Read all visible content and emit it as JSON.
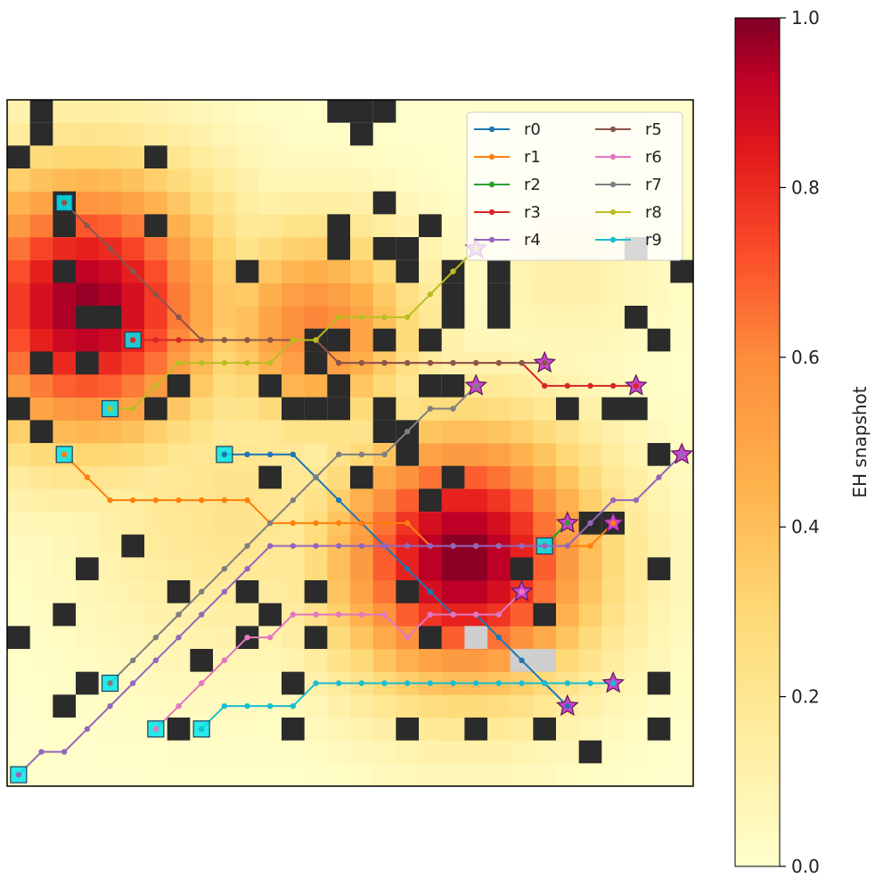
{
  "chart_data": {
    "type": "heatmap",
    "grid_size": [
      30,
      30
    ],
    "title": "",
    "xlabel": "",
    "ylabel": "",
    "heat_blobs": [
      {
        "cx": 3.0,
        "cy": 20.5,
        "peak": 0.98,
        "sigma": 4.3
      },
      {
        "cx": 19.5,
        "cy": 9.5,
        "peak": 1.0,
        "sigma": 4.1
      },
      {
        "cx": 13.0,
        "cy": 19.5,
        "peak": 0.62,
        "sigma": 3.2
      },
      {
        "cx": 9.5,
        "cy": 12.0,
        "peak": 0.22,
        "sigma": 5.0
      },
      {
        "cx": 24.0,
        "cy": 22.0,
        "peak": 0.12,
        "sigma": 3.0
      }
    ],
    "obstacles": [
      [
        1,
        29
      ],
      [
        14,
        29
      ],
      [
        15,
        29
      ],
      [
        16,
        29
      ],
      [
        1,
        28
      ],
      [
        15,
        28
      ],
      [
        0,
        27
      ],
      [
        6,
        27
      ],
      [
        2,
        25
      ],
      [
        16,
        25
      ],
      [
        2,
        24
      ],
      [
        6,
        24
      ],
      [
        14,
        24
      ],
      [
        18,
        24
      ],
      [
        14,
        23
      ],
      [
        16,
        23
      ],
      [
        17,
        23
      ],
      [
        27,
        23
      ],
      [
        2,
        22
      ],
      [
        10,
        22
      ],
      [
        17,
        22
      ],
      [
        19,
        22
      ],
      [
        21,
        22
      ],
      [
        29,
        22
      ],
      [
        19,
        21
      ],
      [
        21,
        21
      ],
      [
        3,
        20
      ],
      [
        4,
        20
      ],
      [
        19,
        20
      ],
      [
        21,
        20
      ],
      [
        27,
        20
      ],
      [
        13,
        19
      ],
      [
        14,
        19
      ],
      [
        16,
        19
      ],
      [
        18,
        19
      ],
      [
        28,
        19
      ],
      [
        1,
        18
      ],
      [
        3,
        18
      ],
      [
        13,
        18
      ],
      [
        7,
        17
      ],
      [
        11,
        17
      ],
      [
        14,
        17
      ],
      [
        18,
        17
      ],
      [
        19,
        17
      ],
      [
        0,
        16
      ],
      [
        6,
        16
      ],
      [
        12,
        16
      ],
      [
        13,
        16
      ],
      [
        14,
        16
      ],
      [
        16,
        16
      ],
      [
        24,
        16
      ],
      [
        26,
        16
      ],
      [
        27,
        16
      ],
      [
        1,
        15
      ],
      [
        16,
        15
      ],
      [
        17,
        15
      ],
      [
        28,
        14
      ],
      [
        17,
        14
      ],
      [
        11,
        13
      ],
      [
        15,
        13
      ],
      [
        19,
        13
      ],
      [
        18,
        12
      ],
      [
        25,
        11
      ],
      [
        26,
        11
      ],
      [
        5,
        10
      ],
      [
        3,
        9
      ],
      [
        22,
        9
      ],
      [
        28,
        9
      ],
      [
        7,
        8
      ],
      [
        10,
        8
      ],
      [
        13,
        8
      ],
      [
        17,
        8
      ],
      [
        2,
        7
      ],
      [
        11,
        7
      ],
      [
        23,
        7
      ],
      [
        0,
        6
      ],
      [
        10,
        6
      ],
      [
        13,
        6
      ],
      [
        18,
        6
      ],
      [
        8,
        5
      ],
      [
        3,
        4
      ],
      [
        12,
        4
      ],
      [
        28,
        4
      ],
      [
        2,
        3
      ],
      [
        7,
        2
      ],
      [
        12,
        2
      ],
      [
        17,
        2
      ],
      [
        20,
        2
      ],
      [
        23,
        2
      ],
      [
        28,
        2
      ],
      [
        25,
        1
      ]
    ],
    "obstacle_hatch": [
      [
        22,
        5
      ],
      [
        23,
        5
      ],
      [
        20,
        6
      ]
    ],
    "legend": {
      "position": "top-right",
      "columns": 2
    },
    "series": [
      {
        "name": "r0",
        "color": "#1f77b4",
        "points": [
          [
            9,
            14
          ],
          [
            10,
            14
          ],
          [
            11,
            14
          ],
          [
            12,
            14
          ],
          [
            13,
            13
          ],
          [
            14,
            12
          ],
          [
            15,
            11
          ],
          [
            16,
            10
          ],
          [
            17,
            9
          ],
          [
            18,
            8
          ],
          [
            19,
            7
          ],
          [
            20,
            7
          ],
          [
            21,
            6
          ],
          [
            22,
            5
          ],
          [
            23,
            4
          ],
          [
            24,
            3
          ]
        ]
      },
      {
        "name": "r1",
        "color": "#ff7f0e",
        "points": [
          [
            2,
            14
          ],
          [
            3,
            13
          ],
          [
            4,
            12
          ],
          [
            5,
            12
          ],
          [
            6,
            12
          ],
          [
            7,
            12
          ],
          [
            8,
            12
          ],
          [
            9,
            12
          ],
          [
            10,
            12
          ],
          [
            11,
            11
          ],
          [
            12,
            11
          ],
          [
            13,
            11
          ],
          [
            14,
            11
          ],
          [
            15,
            11
          ],
          [
            16,
            11
          ],
          [
            17,
            11
          ],
          [
            18,
            10
          ],
          [
            19,
            10
          ],
          [
            20,
            10
          ],
          [
            21,
            10
          ],
          [
            22,
            10
          ],
          [
            23,
            10
          ],
          [
            24,
            10
          ],
          [
            25,
            10
          ],
          [
            26,
            11
          ]
        ]
      },
      {
        "name": "r2",
        "color": "#2ca02c",
        "points": [
          [
            23,
            10
          ],
          [
            24,
            11
          ]
        ]
      },
      {
        "name": "r3",
        "color": "#d62728",
        "points": [
          [
            5,
            19
          ],
          [
            6,
            19
          ],
          [
            7,
            19
          ],
          [
            8,
            19
          ],
          [
            9,
            19
          ],
          [
            10,
            19
          ],
          [
            11,
            19
          ],
          [
            12,
            19
          ],
          [
            13,
            19
          ],
          [
            14,
            18
          ],
          [
            15,
            18
          ],
          [
            16,
            18
          ],
          [
            17,
            18
          ],
          [
            18,
            18
          ],
          [
            19,
            18
          ],
          [
            20,
            18
          ],
          [
            21,
            18
          ],
          [
            22,
            18
          ],
          [
            23,
            17
          ],
          [
            24,
            17
          ],
          [
            25,
            17
          ],
          [
            26,
            17
          ],
          [
            27,
            17
          ]
        ]
      },
      {
        "name": "r4",
        "color": "#9467bd",
        "points": [
          [
            0,
            0
          ],
          [
            1,
            1
          ],
          [
            2,
            1
          ],
          [
            3,
            2
          ],
          [
            4,
            3
          ],
          [
            5,
            4
          ],
          [
            6,
            5
          ],
          [
            7,
            6
          ],
          [
            8,
            7
          ],
          [
            9,
            8
          ],
          [
            10,
            9
          ],
          [
            11,
            10
          ],
          [
            12,
            10
          ],
          [
            13,
            10
          ],
          [
            14,
            10
          ],
          [
            15,
            10
          ],
          [
            16,
            10
          ],
          [
            17,
            10
          ],
          [
            18,
            10
          ],
          [
            19,
            10
          ],
          [
            20,
            10
          ],
          [
            21,
            10
          ],
          [
            22,
            10
          ],
          [
            23,
            10
          ],
          [
            24,
            10
          ],
          [
            25,
            11
          ],
          [
            26,
            12
          ],
          [
            27,
            12
          ],
          [
            28,
            13
          ],
          [
            29,
            14
          ]
        ]
      },
      {
        "name": "r5",
        "color": "#8c564b",
        "points": [
          [
            2,
            25
          ],
          [
            3,
            24
          ],
          [
            4,
            23
          ],
          [
            5,
            22
          ],
          [
            6,
            21
          ],
          [
            7,
            20
          ],
          [
            8,
            19
          ],
          [
            9,
            19
          ],
          [
            10,
            19
          ],
          [
            11,
            19
          ],
          [
            12,
            19
          ],
          [
            13,
            19
          ],
          [
            14,
            18
          ],
          [
            15,
            18
          ],
          [
            16,
            18
          ],
          [
            17,
            18
          ],
          [
            18,
            18
          ],
          [
            19,
            18
          ],
          [
            20,
            18
          ],
          [
            21,
            18
          ],
          [
            22,
            18
          ],
          [
            23,
            18
          ]
        ]
      },
      {
        "name": "r6",
        "color": "#e377c2",
        "points": [
          [
            6,
            2
          ],
          [
            7,
            3
          ],
          [
            8,
            4
          ],
          [
            9,
            5
          ],
          [
            10,
            6
          ],
          [
            11,
            6
          ],
          [
            12,
            7
          ],
          [
            13,
            7
          ],
          [
            14,
            7
          ],
          [
            15,
            7
          ],
          [
            16,
            7
          ],
          [
            17,
            6
          ],
          [
            18,
            7
          ],
          [
            19,
            7
          ],
          [
            20,
            7
          ],
          [
            21,
            7
          ],
          [
            22,
            8
          ]
        ]
      },
      {
        "name": "r7",
        "color": "#7f7f7f",
        "points": [
          [
            4,
            4
          ],
          [
            5,
            5
          ],
          [
            6,
            6
          ],
          [
            7,
            7
          ],
          [
            8,
            8
          ],
          [
            9,
            9
          ],
          [
            10,
            10
          ],
          [
            11,
            11
          ],
          [
            12,
            12
          ],
          [
            13,
            13
          ],
          [
            14,
            14
          ],
          [
            15,
            14
          ],
          [
            16,
            14
          ],
          [
            17,
            15
          ],
          [
            18,
            16
          ],
          [
            19,
            16
          ],
          [
            20,
            17
          ]
        ]
      },
      {
        "name": "r8",
        "color": "#bcbd22",
        "points": [
          [
            4,
            16
          ],
          [
            5,
            16
          ],
          [
            6,
            17
          ],
          [
            7,
            18
          ],
          [
            8,
            18
          ],
          [
            9,
            18
          ],
          [
            10,
            18
          ],
          [
            11,
            18
          ],
          [
            12,
            19
          ],
          [
            13,
            19
          ],
          [
            14,
            20
          ],
          [
            15,
            20
          ],
          [
            16,
            20
          ],
          [
            17,
            20
          ],
          [
            18,
            21
          ],
          [
            19,
            22
          ],
          [
            20,
            23
          ]
        ]
      },
      {
        "name": "r9",
        "color": "#17becf",
        "points": [
          [
            8,
            2
          ],
          [
            9,
            3
          ],
          [
            10,
            3
          ],
          [
            11,
            3
          ],
          [
            12,
            3
          ],
          [
            13,
            4
          ],
          [
            14,
            4
          ],
          [
            15,
            4
          ],
          [
            16,
            4
          ],
          [
            17,
            4
          ],
          [
            18,
            4
          ],
          [
            19,
            4
          ],
          [
            20,
            4
          ],
          [
            21,
            4
          ],
          [
            22,
            4
          ],
          [
            23,
            4
          ],
          [
            24,
            4
          ],
          [
            25,
            4
          ],
          [
            26,
            4
          ]
        ]
      }
    ],
    "colorbar": {
      "label": "EH snapshot",
      "ticks": [
        "0.0",
        "0.2",
        "0.4",
        "0.6",
        "0.8",
        "1.0"
      ],
      "range": [
        0.0,
        1.0
      ],
      "colormap": "YlOrRd-dark"
    }
  }
}
